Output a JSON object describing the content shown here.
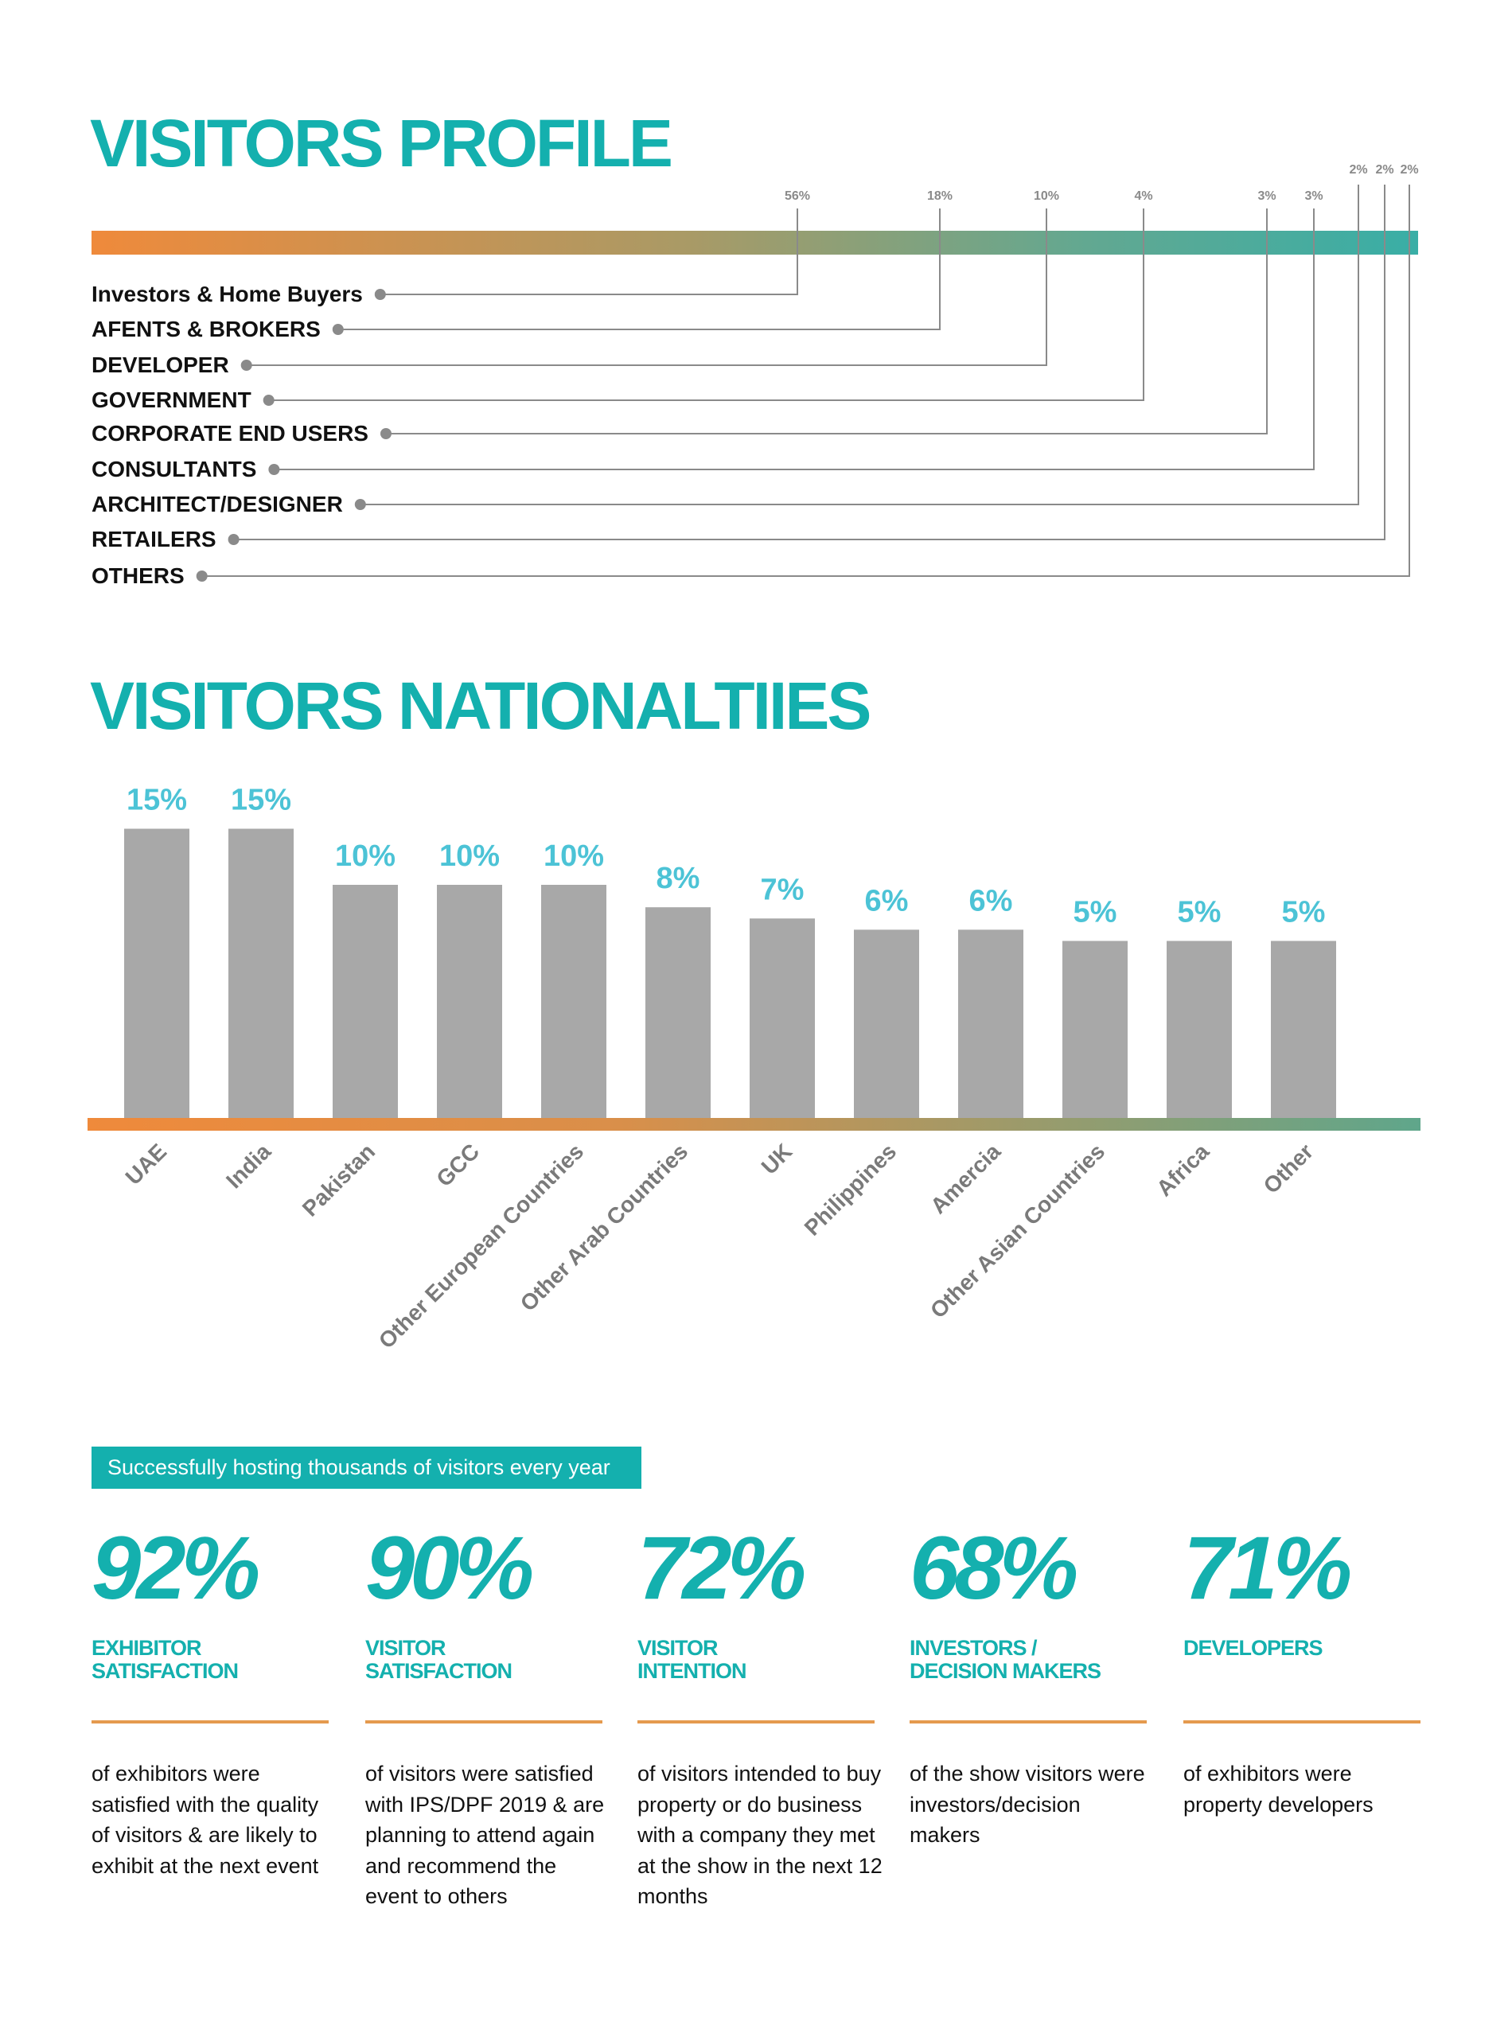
{
  "profile": {
    "title": "VISITORS PROFILE",
    "items": [
      {
        "label": "Investors & Home Buyers",
        "pct": "56%"
      },
      {
        "label": "AFENTS & BROKERS",
        "pct": "18%"
      },
      {
        "label": "DEVELOPER",
        "pct": "10%"
      },
      {
        "label": "GOVERNMENT",
        "pct": "4%"
      },
      {
        "label": "CORPORATE END USERS",
        "pct": "3%"
      },
      {
        "label": "CONSULTANTS",
        "pct": "3%"
      },
      {
        "label": "ARCHITECT/DESIGNER",
        "pct": "2%"
      },
      {
        "label": "RETAILERS",
        "pct": "2%"
      },
      {
        "label": "OTHERS",
        "pct": "2%"
      }
    ]
  },
  "nationalities": {
    "title": "VISITORS NATIONALTIIES"
  },
  "chart_data": [
    {
      "type": "bar",
      "title": "VISITORS PROFILE",
      "categories": [
        "Investors & Home Buyers",
        "AFENTS & BROKERS",
        "DEVELOPER",
        "GOVERNMENT",
        "CORPORATE END USERS",
        "CONSULTANTS",
        "ARCHITECT/DESIGNER",
        "RETAILERS",
        "OTHERS"
      ],
      "values": [
        56,
        18,
        10,
        4,
        3,
        3,
        2,
        2,
        2
      ]
    },
    {
      "type": "bar",
      "title": "VISITORS NATIONALTIIES",
      "categories": [
        "UAE",
        "India",
        "Pakistan",
        "GCC",
        "Other European Countries",
        "Other Arab Countries",
        "UK",
        "Philippines",
        "Amercia",
        "Other Asian Countries",
        "Africa",
        "Other"
      ],
      "values": [
        15,
        15,
        10,
        10,
        10,
        8,
        7,
        6,
        6,
        5,
        5,
        5
      ],
      "value_labels": [
        "15%",
        "15%",
        "10%",
        "10%",
        "10%",
        "8%",
        "7%",
        "6%",
        "6%",
        "5%",
        "5%",
        "5%"
      ],
      "xlabel": "",
      "ylabel": "",
      "grid": false,
      "colors": {
        "bar": "#a8a8a8",
        "value_label": "#4cc3d6",
        "axis_start": "#ef8a3b",
        "axis_end": "#5fa68b"
      }
    }
  ],
  "banner": "Successfully hosting thousands of visitors every year",
  "stats": [
    {
      "value": "92%",
      "category": [
        "EXHIBITOR",
        "SATISFACTION"
      ],
      "desc": "of exhibitors were satisfied with the quality of visitors & are likely to exhibit at the next event"
    },
    {
      "value": "90%",
      "category": [
        "VISITOR",
        "SATISFACTION"
      ],
      "desc": "of visitors were satisfied with IPS/DPF 2019 & are planning to attend again and recommend the event to others"
    },
    {
      "value": "72%",
      "category": [
        "VISITOR",
        "INTENTION"
      ],
      "desc": "of visitors intended to buy property or do business with a company they met at the show in the next 12 months"
    },
    {
      "value": "68%",
      "category": [
        "INVESTORS /",
        "DECISION MAKERS"
      ],
      "desc": "of the show visitors were investors/decision makers"
    },
    {
      "value": "71%",
      "category": [
        "DEVELOPERS",
        ""
      ],
      "desc": "of exhibitors were property developers"
    }
  ],
  "colors": {
    "accent": "#14b0ae",
    "rule": "#e59a4e",
    "connector": "#8a8a8a"
  }
}
